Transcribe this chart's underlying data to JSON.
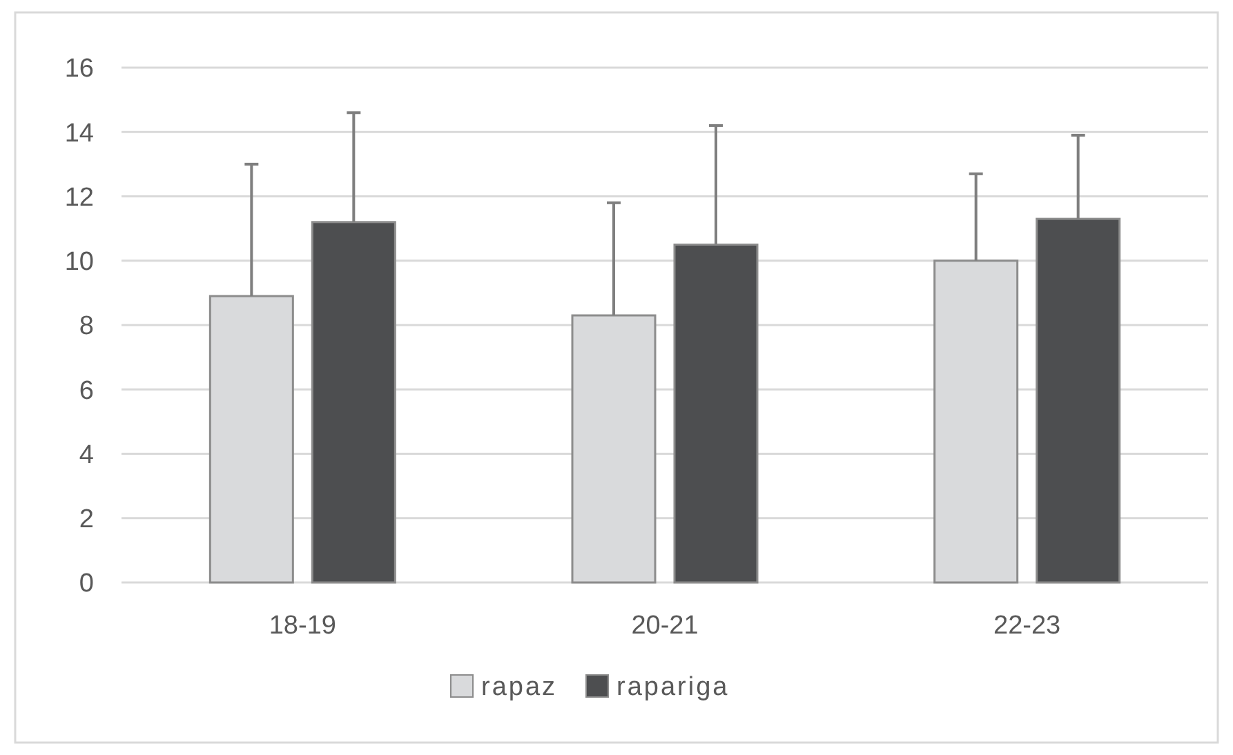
{
  "chart_data": {
    "type": "bar",
    "categories": [
      "18-19",
      "20-21",
      "22-23"
    ],
    "series": [
      {
        "name": "rapaz",
        "color": "#d9dadc",
        "values": [
          8.9,
          8.3,
          10.0
        ],
        "errors": [
          [
            8.9,
            13.0
          ],
          [
            8.3,
            11.8
          ],
          [
            10.0,
            12.7
          ]
        ]
      },
      {
        "name": "rapariga",
        "color": "#4d4e50",
        "values": [
          11.2,
          10.5,
          11.3
        ],
        "errors": [
          [
            11.2,
            14.6
          ],
          [
            10.5,
            14.2
          ],
          [
            11.3,
            13.9
          ]
        ]
      }
    ],
    "ylim": [
      0,
      16
    ],
    "yticks": [
      0,
      2,
      4,
      6,
      8,
      10,
      12,
      14,
      16
    ],
    "grid": "y",
    "legend": "bottom"
  }
}
